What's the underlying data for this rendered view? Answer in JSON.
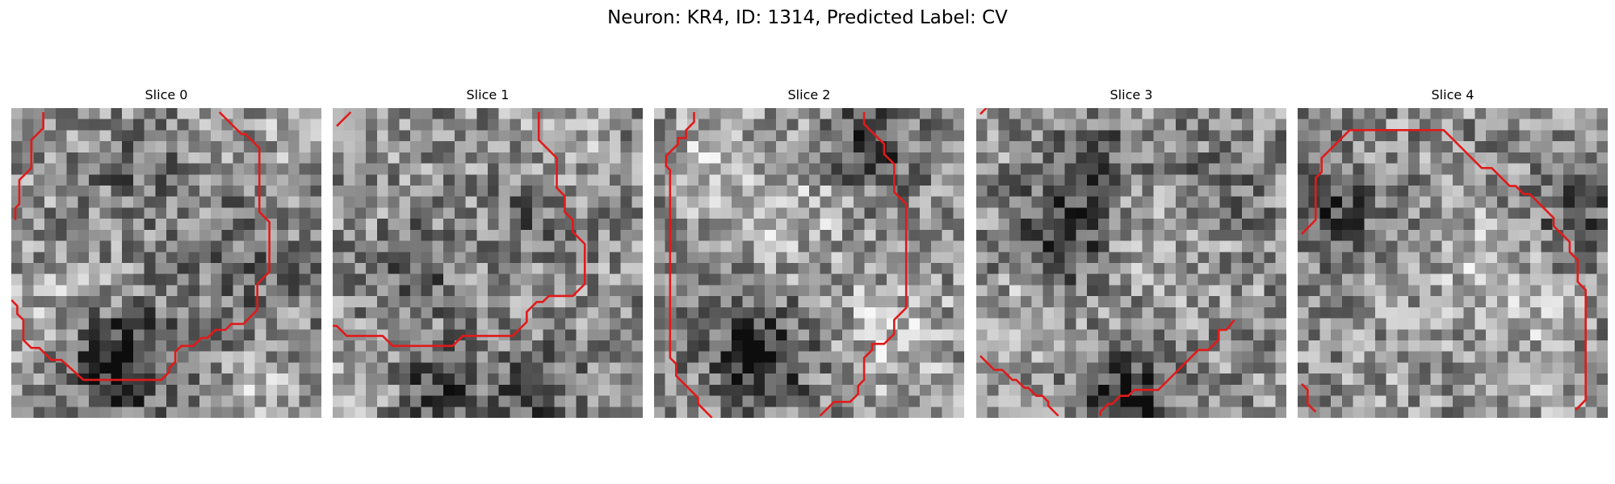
{
  "figure": {
    "title": "Neuron: KR4, ID: 1314, Predicted Label: CV"
  },
  "colors": {
    "contour": "#e11a1a",
    "background": "#ffffff"
  },
  "panels": [
    {
      "title": "Slice 0",
      "contours": [
        [
          [
            1.6,
            0.2
          ],
          [
            1.6,
            1.0
          ],
          [
            1.0,
            1.6
          ],
          [
            1.0,
            3.0
          ],
          [
            0.4,
            3.6
          ],
          [
            0.4,
            4.8
          ],
          [
            0.2,
            5.0
          ],
          [
            0.2,
            5.6
          ]
        ],
        [
          [
            10.4,
            0.2
          ],
          [
            11.5,
            1.3
          ],
          [
            11.7,
            1.3
          ],
          [
            12.4,
            2.0
          ],
          [
            12.4,
            5.2
          ],
          [
            12.9,
            5.7
          ],
          [
            12.9,
            8.2
          ],
          [
            12.3,
            8.8
          ],
          [
            12.3,
            10.1
          ],
          [
            11.6,
            10.8
          ],
          [
            11.0,
            10.8
          ],
          [
            10.7,
            11.1
          ],
          [
            10.2,
            11.1
          ],
          [
            9.8,
            11.5
          ],
          [
            9.5,
            11.5
          ],
          [
            9.1,
            11.9
          ],
          [
            8.5,
            11.9
          ],
          [
            8.2,
            12.2
          ],
          [
            8.2,
            12.7
          ],
          [
            7.9,
            13.0
          ],
          [
            7.9,
            13.2
          ],
          [
            7.5,
            13.6
          ],
          [
            3.6,
            13.6
          ],
          [
            2.5,
            12.6
          ],
          [
            2.0,
            12.6
          ],
          [
            1.4,
            12.0
          ],
          [
            1.0,
            12.0
          ],
          [
            0.6,
            11.6
          ],
          [
            0.6,
            10.6
          ],
          [
            0.3,
            10.3
          ],
          [
            0.3,
            9.9
          ],
          [
            0.0,
            9.6
          ]
        ]
      ]
    },
    {
      "title": "Slice 1",
      "contours": [
        [
          [
            0.2,
            0.9
          ],
          [
            0.9,
            0.2
          ]
        ],
        [
          [
            10.3,
            0.2
          ],
          [
            10.3,
            1.6
          ],
          [
            11.2,
            2.5
          ],
          [
            11.2,
            4.0
          ],
          [
            11.6,
            4.4
          ],
          [
            11.6,
            5.2
          ],
          [
            12.0,
            5.6
          ],
          [
            12.0,
            6.2
          ],
          [
            12.6,
            6.8
          ],
          [
            12.6,
            8.8
          ],
          [
            12.0,
            9.4
          ],
          [
            10.8,
            9.4
          ],
          [
            10.5,
            9.7
          ],
          [
            10.2,
            9.7
          ],
          [
            9.7,
            10.2
          ],
          [
            9.7,
            10.7
          ],
          [
            9.0,
            11.4
          ],
          [
            6.5,
            11.4
          ],
          [
            6.0,
            11.9
          ],
          [
            3.0,
            11.9
          ],
          [
            2.5,
            11.4
          ],
          [
            0.7,
            11.4
          ],
          [
            0.2,
            10.9
          ],
          [
            0.0,
            10.9
          ]
        ]
      ]
    },
    {
      "title": "Slice 2",
      "contours": [
        [
          [
            2.0,
            0.2
          ],
          [
            2.0,
            0.7
          ],
          [
            1.6,
            1.1
          ],
          [
            1.6,
            1.5
          ],
          [
            1.2,
            1.5
          ],
          [
            1.2,
            1.8
          ],
          [
            0.9,
            2.1
          ],
          [
            0.6,
            2.4
          ],
          [
            0.6,
            2.9
          ],
          [
            0.8,
            3.1
          ],
          [
            0.8,
            12.5
          ],
          [
            1.1,
            12.8
          ],
          [
            1.1,
            13.4
          ],
          [
            2.2,
            14.5
          ],
          [
            2.2,
            14.8
          ],
          [
            2.5,
            15.1
          ],
          [
            2.9,
            15.5
          ]
        ],
        [
          [
            10.5,
            0.2
          ],
          [
            10.5,
            0.8
          ],
          [
            10.9,
            1.2
          ],
          [
            11.3,
            1.6
          ],
          [
            11.5,
            1.8
          ],
          [
            11.5,
            2.3
          ],
          [
            12.0,
            2.8
          ],
          [
            12.0,
            4.2
          ],
          [
            12.6,
            4.8
          ],
          [
            12.6,
            10.0
          ],
          [
            12.0,
            10.6
          ],
          [
            12.0,
            11.3
          ],
          [
            11.5,
            11.8
          ],
          [
            10.9,
            11.8
          ],
          [
            10.9,
            12.1
          ],
          [
            10.5,
            12.5
          ],
          [
            10.5,
            13.6
          ],
          [
            10.2,
            13.9
          ],
          [
            10.2,
            14.3
          ],
          [
            9.8,
            14.7
          ],
          [
            9.0,
            14.7
          ],
          [
            8.6,
            15.1
          ],
          [
            8.3,
            15.4
          ]
        ]
      ]
    },
    {
      "title": "Slice 3",
      "contours": [
        [
          [
            0.2,
            0.3
          ],
          [
            0.5,
            0.0
          ]
        ],
        [
          [
            0.2,
            12.4
          ],
          [
            0.9,
            13.1
          ],
          [
            1.3,
            13.1
          ],
          [
            1.8,
            13.6
          ],
          [
            2.0,
            13.6
          ],
          [
            2.4,
            14.0
          ],
          [
            2.6,
            14.0
          ],
          [
            3.0,
            14.4
          ],
          [
            3.3,
            14.4
          ],
          [
            3.6,
            14.7
          ],
          [
            3.6,
            14.9
          ],
          [
            4.1,
            15.4
          ]
        ],
        [
          [
            6.2,
            15.4
          ],
          [
            6.2,
            15.2
          ],
          [
            6.6,
            14.8
          ],
          [
            6.8,
            14.8
          ],
          [
            7.2,
            14.4
          ],
          [
            7.6,
            14.4
          ],
          [
            7.9,
            14.1
          ],
          [
            9.1,
            14.1
          ],
          [
            9.5,
            13.7
          ],
          [
            9.9,
            13.3
          ],
          [
            10.4,
            12.8
          ],
          [
            10.6,
            12.6
          ],
          [
            11.1,
            12.1
          ],
          [
            11.6,
            12.1
          ],
          [
            12.1,
            11.6
          ],
          [
            12.1,
            11.1
          ],
          [
            12.5,
            11.1
          ],
          [
            12.9,
            10.6
          ]
        ]
      ]
    },
    {
      "title": "Slice 4",
      "contours": [
        [
          [
            0.2,
            6.3
          ],
          [
            0.9,
            5.6
          ],
          [
            0.9,
            3.5
          ],
          [
            1.2,
            3.2
          ],
          [
            1.2,
            2.5
          ],
          [
            1.9,
            1.8
          ],
          [
            2.6,
            1.1
          ],
          [
            5.8,
            1.1
          ],
          [
            6.1,
            1.1
          ],
          [
            6.5,
            1.1
          ],
          [
            7.3,
            1.1
          ],
          [
            8.5,
            2.3
          ],
          [
            8.7,
            2.5
          ],
          [
            9.2,
            3.0
          ],
          [
            9.7,
            3.0
          ],
          [
            10.2,
            3.5
          ],
          [
            10.6,
            3.9
          ],
          [
            10.9,
            3.9
          ],
          [
            11.3,
            4.3
          ],
          [
            11.6,
            4.3
          ],
          [
            11.9,
            4.6
          ],
          [
            12.2,
            4.9
          ],
          [
            12.5,
            5.2
          ],
          [
            12.8,
            5.5
          ],
          [
            12.8,
            5.9
          ],
          [
            13.2,
            6.3
          ],
          [
            13.6,
            6.7
          ],
          [
            13.6,
            7.2
          ],
          [
            14.0,
            7.6
          ],
          [
            14.0,
            8.7
          ],
          [
            14.4,
            9.1
          ],
          [
            14.4,
            14.6
          ],
          [
            13.9,
            15.1
          ]
        ],
        [
          [
            0.2,
            13.8
          ],
          [
            0.5,
            14.1
          ],
          [
            0.5,
            14.8
          ],
          [
            0.9,
            15.2
          ]
        ]
      ]
    }
  ]
}
